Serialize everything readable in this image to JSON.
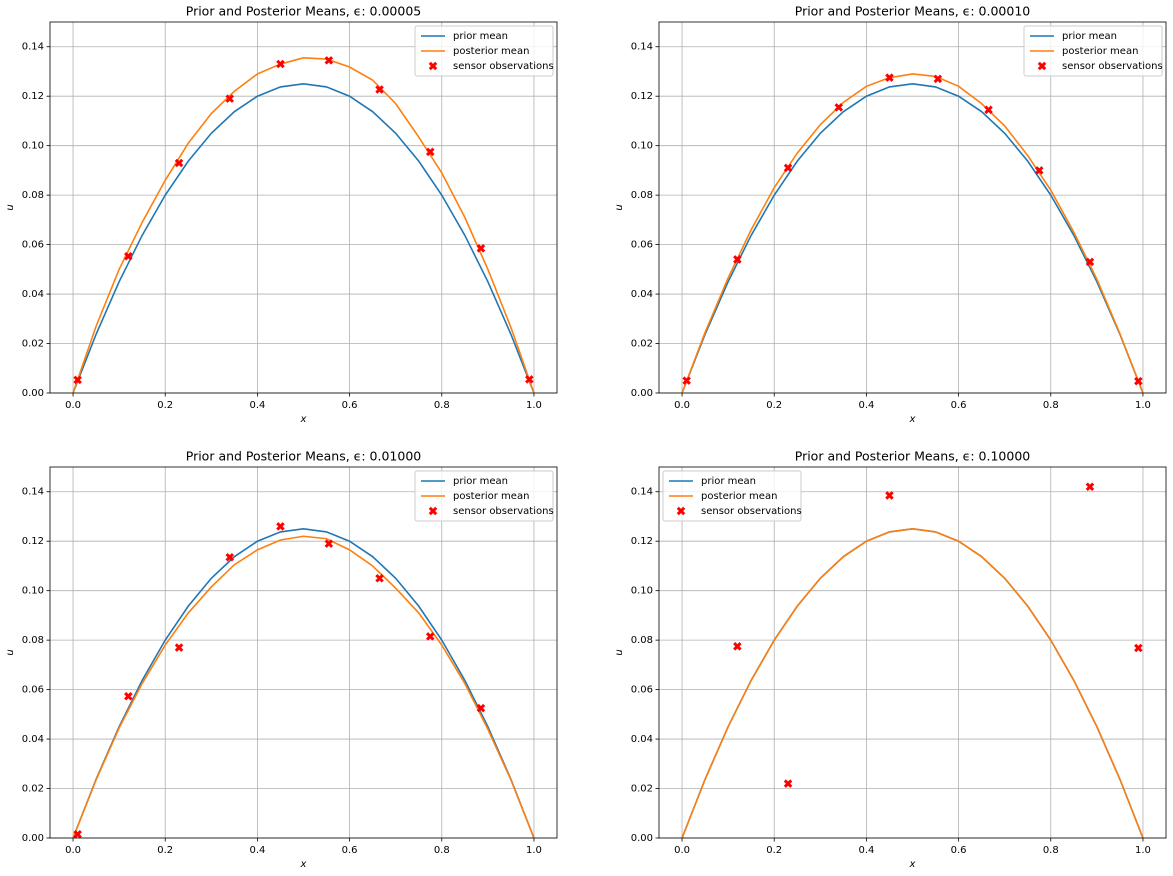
{
  "chart_data": [
    {
      "type": "line",
      "title": "Prior and Posterior Means, ϵ: 0.00005",
      "xlabel": "x",
      "ylabel": "u",
      "xlim": [
        -0.05,
        1.05
      ],
      "ylim": [
        0,
        0.15
      ],
      "grid": true,
      "legend": "upper right",
      "xticks": [
        {
          "value": 0,
          "label": "0.0"
        },
        {
          "value": 0.2,
          "label": "0.2"
        },
        {
          "value": 0.4,
          "label": "0.4"
        },
        {
          "value": 0.6,
          "label": "0.6"
        },
        {
          "value": 0.8,
          "label": "0.8"
        },
        {
          "value": 1,
          "label": "1.0"
        }
      ],
      "yticks": [
        {
          "value": 0,
          "label": "0.00"
        },
        {
          "value": 0.02,
          "label": "0.02"
        },
        {
          "value": 0.04,
          "label": "0.04"
        },
        {
          "value": 0.06,
          "label": "0.06"
        },
        {
          "value": 0.08,
          "label": "0.08"
        },
        {
          "value": 0.1,
          "label": "0.10"
        },
        {
          "value": 0.12,
          "label": "0.12"
        },
        {
          "value": 0.14,
          "label": "0.14"
        }
      ],
      "x": [
        0,
        0.05,
        0.1,
        0.15,
        0.2,
        0.25,
        0.3,
        0.35,
        0.4,
        0.45,
        0.5,
        0.55,
        0.6,
        0.65,
        0.7,
        0.75,
        0.8,
        0.85,
        0.9,
        0.95,
        1
      ],
      "series": [
        {
          "name": "prior mean",
          "color": "#1f77b4",
          "values": [
            0,
            0.02375,
            0.045,
            0.06375,
            0.08,
            0.09375,
            0.105,
            0.11375,
            0.12,
            0.12375,
            0.125,
            0.12375,
            0.12,
            0.11375,
            0.105,
            0.09375,
            0.08,
            0.06375,
            0.045,
            0.02375,
            0
          ]
        },
        {
          "name": "posterior mean",
          "color": "#ff7f0e",
          "values": [
            0,
            0.027,
            0.05,
            0.069,
            0.086,
            0.101,
            0.113,
            0.122,
            0.129,
            0.133,
            0.1355,
            0.135,
            0.1318,
            0.1265,
            0.117,
            0.1035,
            0.089,
            0.071,
            0.05,
            0.0265,
            0
          ]
        },
        {
          "name": "sensor observations",
          "type": "scatter",
          "color": "#ff0000",
          "x": [
            0.01,
            0.12,
            0.23,
            0.34,
            0.45,
            0.555,
            0.665,
            0.775,
            0.885,
            0.99
          ],
          "values": [
            0.0053,
            0.0553,
            0.093,
            0.119,
            0.133,
            0.1345,
            0.1227,
            0.0975,
            0.0585,
            0.0055
          ]
        }
      ]
    },
    {
      "type": "line",
      "title": "Prior and Posterior Means, ϵ: 0.00010",
      "xlabel": "x",
      "ylabel": "u",
      "xlim": [
        -0.05,
        1.05
      ],
      "ylim": [
        0,
        0.15
      ],
      "grid": true,
      "legend": "upper right",
      "xticks": [
        {
          "value": 0,
          "label": "0.0"
        },
        {
          "value": 0.2,
          "label": "0.2"
        },
        {
          "value": 0.4,
          "label": "0.4"
        },
        {
          "value": 0.6,
          "label": "0.6"
        },
        {
          "value": 0.8,
          "label": "0.8"
        },
        {
          "value": 1,
          "label": "1.0"
        }
      ],
      "yticks": [
        {
          "value": 0,
          "label": "0.00"
        },
        {
          "value": 0.02,
          "label": "0.02"
        },
        {
          "value": 0.04,
          "label": "0.04"
        },
        {
          "value": 0.06,
          "label": "0.06"
        },
        {
          "value": 0.08,
          "label": "0.08"
        },
        {
          "value": 0.1,
          "label": "0.10"
        },
        {
          "value": 0.12,
          "label": "0.12"
        },
        {
          "value": 0.14,
          "label": "0.14"
        }
      ],
      "x": [
        0,
        0.05,
        0.1,
        0.15,
        0.2,
        0.25,
        0.3,
        0.35,
        0.4,
        0.45,
        0.5,
        0.55,
        0.6,
        0.65,
        0.7,
        0.75,
        0.8,
        0.85,
        0.9,
        0.95,
        1
      ],
      "series": [
        {
          "name": "prior mean",
          "color": "#1f77b4",
          "values": [
            0,
            0.02375,
            0.045,
            0.06375,
            0.08,
            0.09375,
            0.105,
            0.11375,
            0.12,
            0.12375,
            0.125,
            0.12375,
            0.12,
            0.11375,
            0.105,
            0.09375,
            0.08,
            0.06375,
            0.045,
            0.02375,
            0
          ]
        },
        {
          "name": "posterior mean",
          "color": "#ff7f0e",
          "values": [
            0,
            0.0245,
            0.0465,
            0.066,
            0.083,
            0.097,
            0.1085,
            0.1175,
            0.124,
            0.1275,
            0.129,
            0.128,
            0.124,
            0.117,
            0.108,
            0.096,
            0.082,
            0.065,
            0.046,
            0.024,
            0
          ]
        },
        {
          "name": "sensor observations",
          "type": "scatter",
          "color": "#ff0000",
          "x": [
            0.01,
            0.12,
            0.23,
            0.34,
            0.45,
            0.555,
            0.665,
            0.775,
            0.885,
            0.99
          ],
          "values": [
            0.005,
            0.054,
            0.091,
            0.1155,
            0.1275,
            0.127,
            0.1145,
            0.09,
            0.053,
            0.0048
          ]
        }
      ]
    },
    {
      "type": "line",
      "title": "Prior and Posterior Means, ϵ: 0.01000",
      "xlabel": "x",
      "ylabel": "u",
      "xlim": [
        -0.05,
        1.05
      ],
      "ylim": [
        0,
        0.15
      ],
      "grid": true,
      "legend": "upper right",
      "xticks": [
        {
          "value": 0,
          "label": "0.0"
        },
        {
          "value": 0.2,
          "label": "0.2"
        },
        {
          "value": 0.4,
          "label": "0.4"
        },
        {
          "value": 0.6,
          "label": "0.6"
        },
        {
          "value": 0.8,
          "label": "0.8"
        },
        {
          "value": 1,
          "label": "1.0"
        }
      ],
      "yticks": [
        {
          "value": 0,
          "label": "0.00"
        },
        {
          "value": 0.02,
          "label": "0.02"
        },
        {
          "value": 0.04,
          "label": "0.04"
        },
        {
          "value": 0.06,
          "label": "0.06"
        },
        {
          "value": 0.08,
          "label": "0.08"
        },
        {
          "value": 0.1,
          "label": "0.10"
        },
        {
          "value": 0.12,
          "label": "0.12"
        },
        {
          "value": 0.14,
          "label": "0.14"
        }
      ],
      "x": [
        0,
        0.05,
        0.1,
        0.15,
        0.2,
        0.25,
        0.3,
        0.35,
        0.4,
        0.45,
        0.5,
        0.55,
        0.6,
        0.65,
        0.7,
        0.75,
        0.8,
        0.85,
        0.9,
        0.95,
        1
      ],
      "series": [
        {
          "name": "prior mean",
          "color": "#1f77b4",
          "values": [
            0,
            0.02375,
            0.045,
            0.06375,
            0.08,
            0.09375,
            0.105,
            0.11375,
            0.12,
            0.12375,
            0.125,
            0.12375,
            0.12,
            0.11375,
            0.105,
            0.09375,
            0.08,
            0.06375,
            0.045,
            0.02375,
            0
          ]
        },
        {
          "name": "posterior mean",
          "color": "#ff7f0e",
          "values": [
            0,
            0.0235,
            0.0445,
            0.0625,
            0.078,
            0.091,
            0.1015,
            0.1105,
            0.1165,
            0.1205,
            0.122,
            0.121,
            0.1165,
            0.11,
            0.101,
            0.091,
            0.078,
            0.0625,
            0.044,
            0.0235,
            0
          ]
        },
        {
          "name": "sensor observations",
          "type": "scatter",
          "color": "#ff0000",
          "x": [
            0.01,
            0.12,
            0.23,
            0.34,
            0.45,
            0.555,
            0.665,
            0.775,
            0.885
          ],
          "values": [
            0.0015,
            0.0573,
            0.077,
            0.1135,
            0.126,
            0.119,
            0.105,
            0.0815,
            0.0525
          ]
        }
      ]
    },
    {
      "type": "line",
      "title": "Prior and Posterior Means, ϵ: 0.10000",
      "xlabel": "x",
      "ylabel": "u",
      "xlim": [
        -0.05,
        1.05
      ],
      "ylim": [
        0,
        0.15
      ],
      "grid": true,
      "legend": "upper left",
      "xticks": [
        {
          "value": 0,
          "label": "0.0"
        },
        {
          "value": 0.2,
          "label": "0.2"
        },
        {
          "value": 0.4,
          "label": "0.4"
        },
        {
          "value": 0.6,
          "label": "0.6"
        },
        {
          "value": 0.8,
          "label": "0.8"
        },
        {
          "value": 1,
          "label": "1.0"
        }
      ],
      "yticks": [
        {
          "value": 0,
          "label": "0.00"
        },
        {
          "value": 0.02,
          "label": "0.02"
        },
        {
          "value": 0.04,
          "label": "0.04"
        },
        {
          "value": 0.06,
          "label": "0.06"
        },
        {
          "value": 0.08,
          "label": "0.08"
        },
        {
          "value": 0.1,
          "label": "0.10"
        },
        {
          "value": 0.12,
          "label": "0.12"
        },
        {
          "value": 0.14,
          "label": "0.14"
        }
      ],
      "x": [
        0,
        0.05,
        0.1,
        0.15,
        0.2,
        0.25,
        0.3,
        0.35,
        0.4,
        0.45,
        0.5,
        0.55,
        0.6,
        0.65,
        0.7,
        0.75,
        0.8,
        0.85,
        0.9,
        0.95,
        1
      ],
      "series": [
        {
          "name": "prior mean",
          "color": "#1f77b4",
          "values": [
            0,
            0.02375,
            0.045,
            0.06375,
            0.08,
            0.09375,
            0.105,
            0.11375,
            0.12,
            0.12375,
            0.125,
            0.12375,
            0.12,
            0.11375,
            0.105,
            0.09375,
            0.08,
            0.06375,
            0.045,
            0.02375,
            0
          ]
        },
        {
          "name": "posterior mean",
          "color": "#ff7f0e",
          "values": [
            0,
            0.02375,
            0.045,
            0.06375,
            0.08,
            0.09375,
            0.105,
            0.11375,
            0.12,
            0.12375,
            0.125,
            0.12375,
            0.12,
            0.11375,
            0.105,
            0.09375,
            0.08,
            0.06375,
            0.045,
            0.02375,
            0
          ]
        },
        {
          "name": "sensor observations",
          "type": "scatter",
          "color": "#ff0000",
          "x": [
            0.12,
            0.23,
            0.45,
            0.885,
            0.99
          ],
          "values": [
            0.0775,
            0.022,
            0.1385,
            0.142,
            0.0768
          ]
        }
      ]
    }
  ]
}
